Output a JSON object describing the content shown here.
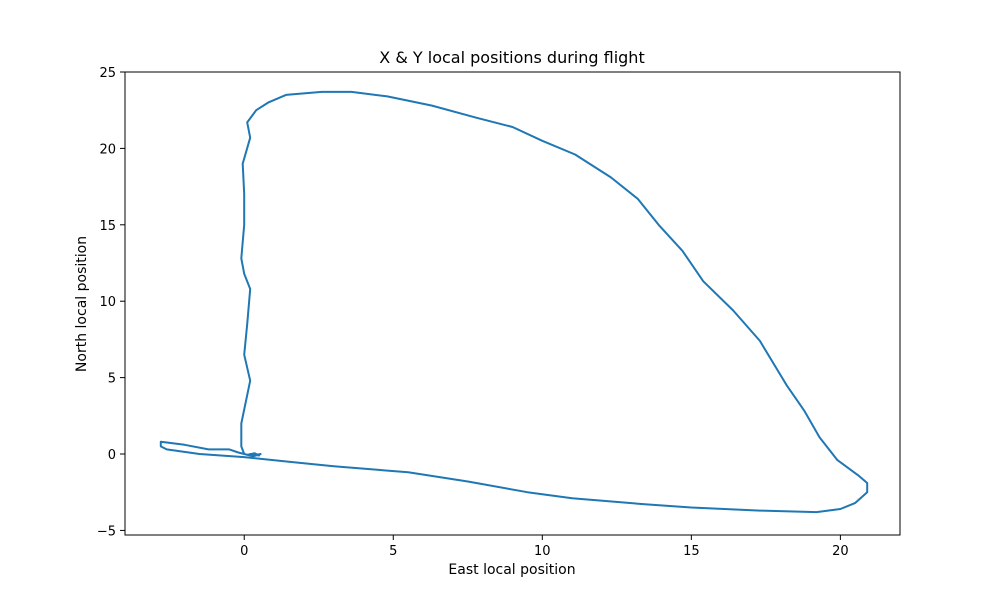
{
  "chart_data": {
    "type": "line",
    "title": "X & Y local positions during flight",
    "xlabel": "East local position",
    "ylabel": "North local position",
    "xlim": [
      -4,
      22
    ],
    "ylim": [
      -5.3,
      25
    ],
    "xticks": [
      0,
      5,
      10,
      15,
      20
    ],
    "yticks": [
      -5,
      0,
      5,
      10,
      15,
      20,
      25
    ],
    "grid": false,
    "color": "#1f77b4",
    "series": [
      {
        "points": [
          [
            0.0,
            0.0
          ],
          [
            -0.1,
            0.5
          ],
          [
            -0.1,
            2.0
          ],
          [
            0.2,
            4.8
          ],
          [
            0.0,
            6.5
          ],
          [
            0.1,
            8.5
          ],
          [
            0.2,
            10.8
          ],
          [
            0.0,
            11.8
          ],
          [
            -0.1,
            12.8
          ],
          [
            0.0,
            15.0
          ],
          [
            0.0,
            17.0
          ],
          [
            -0.05,
            19.0
          ],
          [
            0.2,
            20.7
          ],
          [
            0.1,
            21.7
          ],
          [
            0.4,
            22.5
          ],
          [
            0.8,
            23.0
          ],
          [
            1.4,
            23.5
          ],
          [
            2.6,
            23.7
          ],
          [
            3.6,
            23.7
          ],
          [
            4.8,
            23.4
          ],
          [
            6.3,
            22.8
          ],
          [
            7.8,
            22.0
          ],
          [
            9.0,
            21.4
          ],
          [
            10.0,
            20.5
          ],
          [
            11.1,
            19.6
          ],
          [
            12.3,
            18.1
          ],
          [
            13.2,
            16.7
          ],
          [
            13.9,
            15.0
          ],
          [
            14.7,
            13.3
          ],
          [
            15.4,
            11.3
          ],
          [
            16.4,
            9.4
          ],
          [
            17.3,
            7.4
          ],
          [
            18.2,
            4.5
          ],
          [
            18.8,
            2.8
          ],
          [
            19.3,
            1.1
          ],
          [
            19.9,
            -0.4
          ],
          [
            20.6,
            -1.4
          ],
          [
            20.9,
            -1.9
          ],
          [
            20.9,
            -2.5
          ],
          [
            20.5,
            -3.2
          ],
          [
            20.0,
            -3.6
          ],
          [
            19.2,
            -3.8
          ],
          [
            17.3,
            -3.7
          ],
          [
            15.0,
            -3.5
          ],
          [
            13.5,
            -3.3
          ],
          [
            11.0,
            -2.9
          ],
          [
            9.5,
            -2.5
          ],
          [
            7.5,
            -1.8
          ],
          [
            5.5,
            -1.2
          ],
          [
            3.0,
            -0.8
          ],
          [
            1.5,
            -0.5
          ],
          [
            0.0,
            -0.2
          ],
          [
            -1.5,
            0.0
          ],
          [
            -2.6,
            0.3
          ],
          [
            -2.8,
            0.5
          ],
          [
            -2.8,
            0.8
          ],
          [
            -2.0,
            0.6
          ],
          [
            -1.2,
            0.3
          ],
          [
            -0.5,
            0.3
          ],
          [
            -0.2,
            0.1
          ],
          [
            0.0,
            0.0
          ],
          [
            0.2,
            -0.1
          ],
          [
            0.4,
            -0.05
          ],
          [
            0.55,
            0.0
          ],
          [
            0.3,
            -0.15
          ],
          [
            0.1,
            -0.05
          ],
          [
            0.35,
            0.05
          ],
          [
            0.5,
            -0.1
          ],
          [
            0.2,
            0.0
          ]
        ]
      }
    ]
  }
}
